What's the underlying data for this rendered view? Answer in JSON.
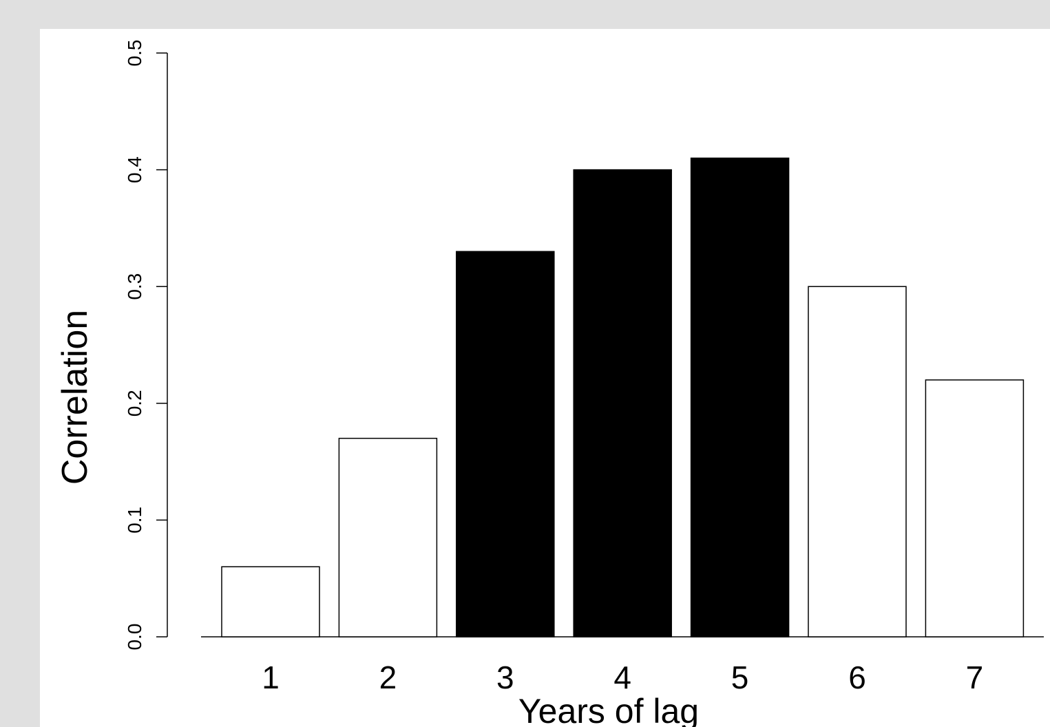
{
  "chart_data": {
    "type": "bar",
    "categories": [
      "1",
      "2",
      "3",
      "4",
      "5",
      "6",
      "7"
    ],
    "values": [
      0.06,
      0.17,
      0.33,
      0.4,
      0.41,
      0.3,
      0.22
    ],
    "highlighted": [
      false,
      false,
      true,
      true,
      true,
      false,
      false
    ],
    "xlabel": "Years of lag",
    "ylabel": "Correlation",
    "ylim": [
      0,
      0.5
    ],
    "yticks": [
      "0.0",
      "0.1",
      "0.2",
      "0.3",
      "0.4",
      "0.5"
    ],
    "grid": false,
    "colors": {
      "highlighted_fill": "#000000",
      "normal_fill": "#ffffff",
      "outline": "#000000",
      "page_background": "#e0e0e0",
      "panel_background": "#ffffff"
    }
  }
}
